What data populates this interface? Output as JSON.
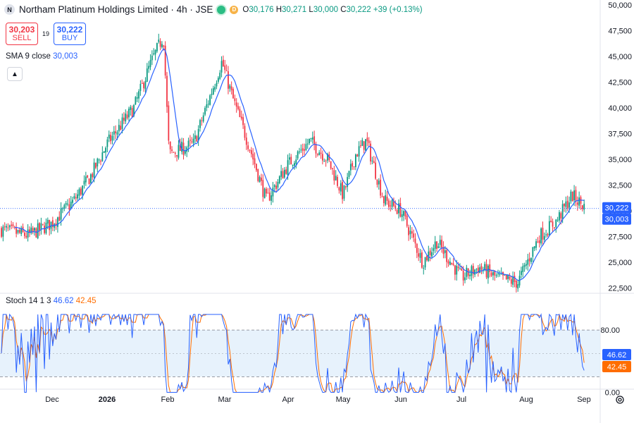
{
  "header": {
    "symbol_icon": "N",
    "title": "Northam Platinum Holdings Limited · 4h · JSE",
    "badge_d": "D",
    "ohlc": {
      "o_label": "O",
      "o": "30,176",
      "h_label": "H",
      "h": "30,271",
      "l_label": "L",
      "l": "30,000",
      "c_label": "C",
      "c": "30,222",
      "change": "+39 (+0.13%)"
    }
  },
  "trade": {
    "sell_price": "30,203",
    "sell_label": "SELL",
    "spread": "19",
    "buy_price": "30,222",
    "buy_label": "BUY"
  },
  "sma_legend": {
    "name": "SMA 9 close",
    "value": "30,003"
  },
  "stoch_legend": {
    "name": "Stoch 14 1 3",
    "k": "46.62",
    "d": "42.45"
  },
  "colors": {
    "up": "#089981",
    "down": "#f23645",
    "sma": "#2962ff",
    "k_line": "#2962ff",
    "d_line": "#ff6d00",
    "band": "#e3f0fb"
  },
  "icons": [
    "chevron-up-icon",
    "gear-icon"
  ],
  "chart_data": [
    {
      "type": "candlestick",
      "title": "Northam Platinum Holdings Limited · 4h · JSE",
      "y_ticks": [
        "22,500",
        "25,000",
        "27,500",
        "30,000",
        "32,500",
        "35,000",
        "37,500",
        "40,000",
        "42,500",
        "45,000",
        "47,500",
        "50,000"
      ],
      "ylim": [
        21500,
        50000
      ],
      "x_ticks": [
        "Dec",
        "2026",
        "Feb",
        "Mar",
        "Apr",
        "May",
        "Jun",
        "Jul",
        "Aug",
        "Sep"
      ],
      "grid": false,
      "series": [
        {
          "name": "Price",
          "anchors": [
            [
              "start",
              28200
            ],
            [
              "mid-Nov",
              27600
            ],
            [
              "Dec",
              28800
            ],
            [
              "mid-Dec",
              31000
            ],
            [
              "late-Dec",
              33500
            ],
            [
              "2026",
              36500
            ],
            [
              "mid-Jan",
              40000
            ],
            [
              "late-Jan",
              44500
            ],
            [
              "Feb-early",
              47000
            ],
            [
              "Feb",
              35500
            ],
            [
              "mid-Feb",
              36500
            ],
            [
              "Mar-early",
              44500
            ],
            [
              "Mar",
              41000
            ],
            [
              "mid-Mar",
              36000
            ],
            [
              "late-Mar",
              31000
            ],
            [
              "Apr",
              34500
            ],
            [
              "mid-Apr",
              36800
            ],
            [
              "late-Apr",
              35000
            ],
            [
              "May",
              31500
            ],
            [
              "mid-May",
              35500
            ],
            [
              "late-May",
              36800
            ],
            [
              "end-May",
              31000
            ],
            [
              "Jun",
              30000
            ],
            [
              "mid-Jun",
              25000
            ],
            [
              "late-Jun",
              27000
            ],
            [
              "Jul",
              23500
            ],
            [
              "mid-Jul",
              24500
            ],
            [
              "late-Jul",
              23500
            ],
            [
              "Aug",
              23000
            ],
            [
              "mid-Aug",
              27500
            ],
            [
              "late-Aug",
              29000
            ],
            [
              "end-Aug",
              31500
            ],
            [
              "Sep",
              30222
            ]
          ]
        },
        {
          "name": "SMA 9 close",
          "last": 30003
        }
      ],
      "last_price": 30222,
      "sma_last": 30003
    },
    {
      "type": "line",
      "title": "Stoch 14 1 3",
      "y_ticks": [
        "80.00",
        "0.00"
      ],
      "bands": [
        20,
        50,
        80
      ],
      "ylim": [
        -5,
        100
      ],
      "series": [
        {
          "name": "%K",
          "last": 46.62
        },
        {
          "name": "%D",
          "last": 42.45
        }
      ]
    }
  ]
}
